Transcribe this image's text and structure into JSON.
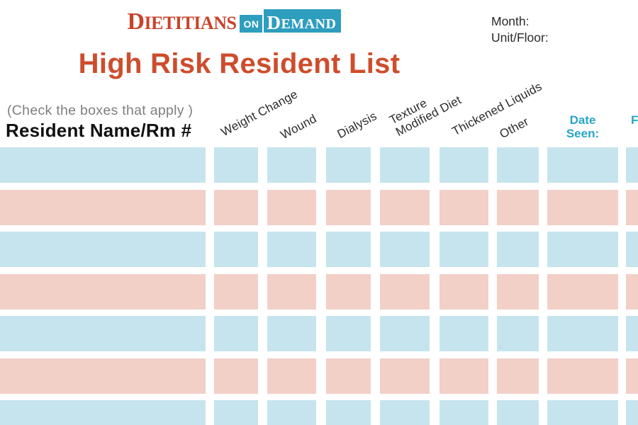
{
  "colors": {
    "logo_red": "#c8432b",
    "title_red": "#ce4d2c",
    "teal": "#2e9ebf",
    "teal_text": "#29a5c5",
    "cell_blue": "#c6e4ee",
    "cell_pink": "#f2d0c8",
    "text_dark": "#2b2b2b",
    "text_gray": "#7f7f7f"
  },
  "logo": {
    "word1_initial": "D",
    "word1_rest": "IETITIANS",
    "word2": "ON",
    "word3_initial": "D",
    "word3_rest": "EMAND"
  },
  "meta": {
    "month_label": "Month:",
    "unit_floor_label": "Unit/Floor:"
  },
  "title": "High Risk Resident List",
  "table": {
    "instructions": "(Check the boxes that apply )",
    "name_header": "Resident Name/Rm #",
    "check_columns": [
      "Weight Change",
      "Wound",
      "Dialysis",
      "Texture\nModified Diet",
      "Thickened Liquids",
      "Other"
    ],
    "date_seen_header": "Date\nSeen:",
    "followup_header_fragment": "F",
    "rows": 7,
    "row_pattern": [
      "blue",
      "pink"
    ]
  }
}
